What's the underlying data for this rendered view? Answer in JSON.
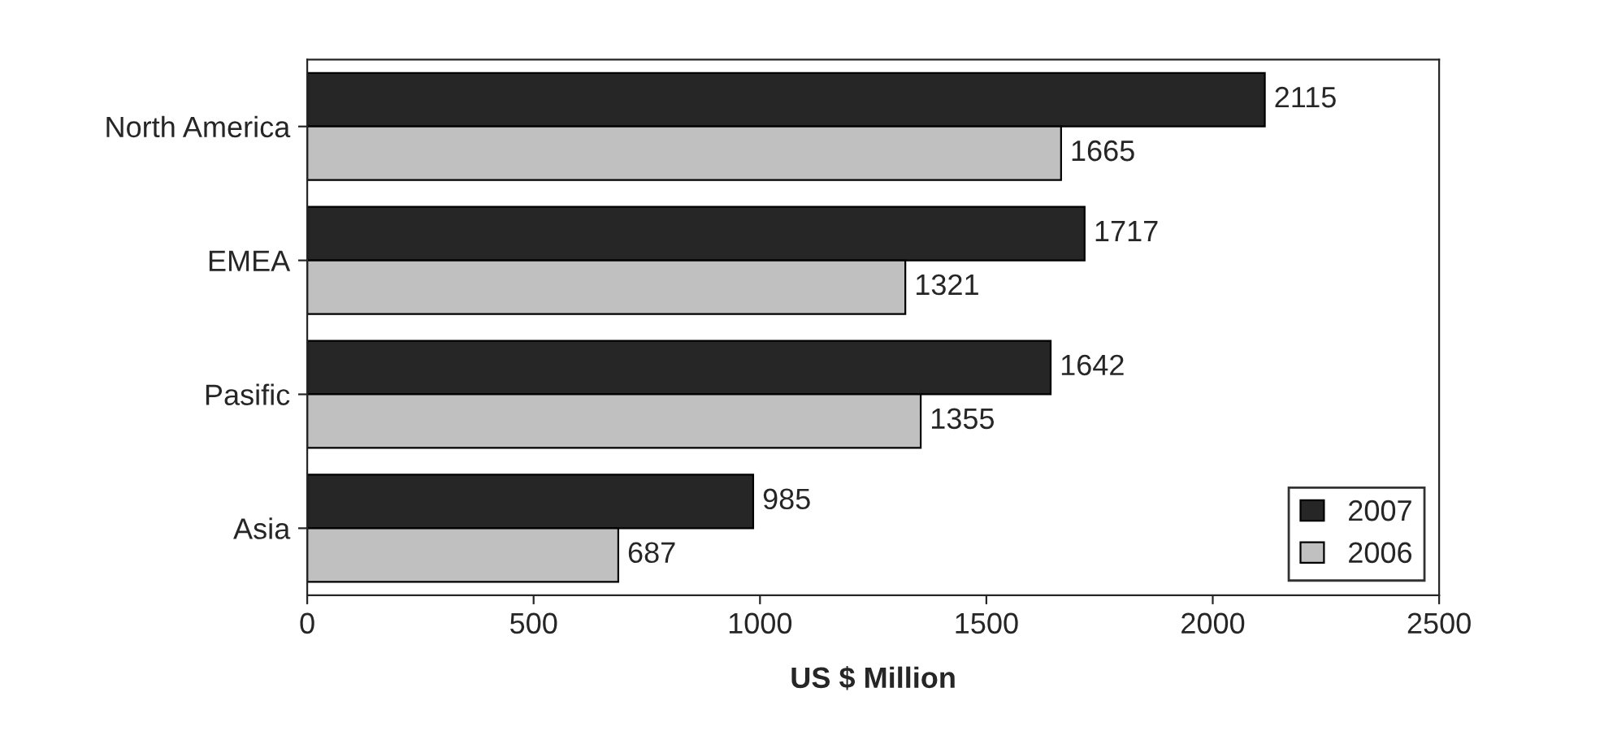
{
  "chart_data": {
    "type": "bar",
    "orientation": "horizontal",
    "xlabel": "US $ Million",
    "categories": [
      "North America",
      "EMEA",
      "Pasific",
      "Asia"
    ],
    "series": [
      {
        "name": "2007",
        "color": "#262626",
        "values": [
          2115,
          1717,
          1642,
          985
        ]
      },
      {
        "name": "2006",
        "color": "#c0c0c0",
        "values": [
          1665,
          1321,
          1355,
          687
        ]
      }
    ],
    "xlim": [
      0,
      2500
    ],
    "xticks": [
      0,
      500,
      1000,
      1500,
      2000,
      2500
    ],
    "data_labels": true,
    "grid": false,
    "legend": "bottom right"
  }
}
